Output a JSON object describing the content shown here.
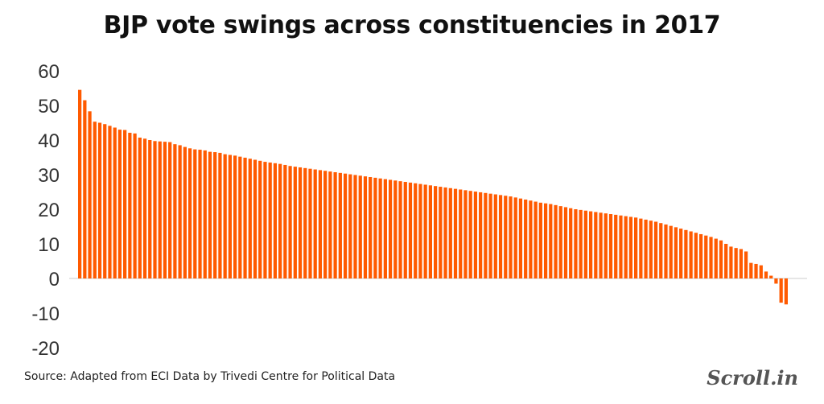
{
  "chart_data": {
    "type": "bar",
    "title": "BJP vote swings across constituencies in 2017",
    "xlabel": "",
    "ylabel": "",
    "ylim": [
      -20,
      60
    ],
    "yticks": [
      60,
      50,
      40,
      30,
      20,
      10,
      0,
      -10,
      -20
    ],
    "grid": false,
    "bar_color": "#ff5a00",
    "values": [
      54.5,
      51.5,
      48.3,
      45.3,
      45.0,
      44.6,
      44.1,
      43.6,
      43.0,
      42.9,
      42.1,
      41.9,
      40.7,
      40.4,
      40.0,
      39.7,
      39.6,
      39.5,
      39.4,
      38.8,
      38.5,
      38.0,
      37.6,
      37.3,
      37.2,
      37.0,
      36.6,
      36.5,
      36.3,
      35.9,
      35.7,
      35.5,
      35.2,
      34.9,
      34.6,
      34.3,
      34.0,
      33.7,
      33.5,
      33.3,
      33.1,
      32.8,
      32.5,
      32.3,
      32.1,
      31.9,
      31.7,
      31.5,
      31.3,
      31.1,
      30.9,
      30.7,
      30.5,
      30.3,
      30.1,
      29.9,
      29.7,
      29.5,
      29.3,
      29.1,
      28.9,
      28.7,
      28.5,
      28.3,
      28.1,
      27.9,
      27.7,
      27.5,
      27.3,
      27.1,
      26.9,
      26.7,
      26.5,
      26.3,
      26.1,
      25.9,
      25.7,
      25.5,
      25.3,
      25.1,
      24.9,
      24.7,
      24.5,
      24.3,
      24.1,
      23.9,
      23.7,
      23.4,
      23.1,
      22.8,
      22.5,
      22.2,
      21.9,
      21.7,
      21.5,
      21.2,
      20.9,
      20.6,
      20.3,
      20.0,
      19.8,
      19.6,
      19.4,
      19.2,
      19.0,
      18.8,
      18.6,
      18.4,
      18.2,
      18.0,
      17.8,
      17.6,
      17.3,
      17.0,
      16.7,
      16.4,
      16.0,
      15.6,
      15.2,
      14.8,
      14.4,
      14.0,
      13.6,
      13.2,
      12.8,
      12.4,
      12.0,
      11.5,
      11.0,
      10.0,
      9.2,
      8.8,
      8.5,
      7.8,
      4.5,
      4.2,
      3.8,
      2.0,
      0.8,
      -1.5,
      -7.0,
      -7.5
    ]
  },
  "source": "Source: Adapted from ECI Data by Trivedi Centre for Political Data",
  "brand": "Scroll.in"
}
